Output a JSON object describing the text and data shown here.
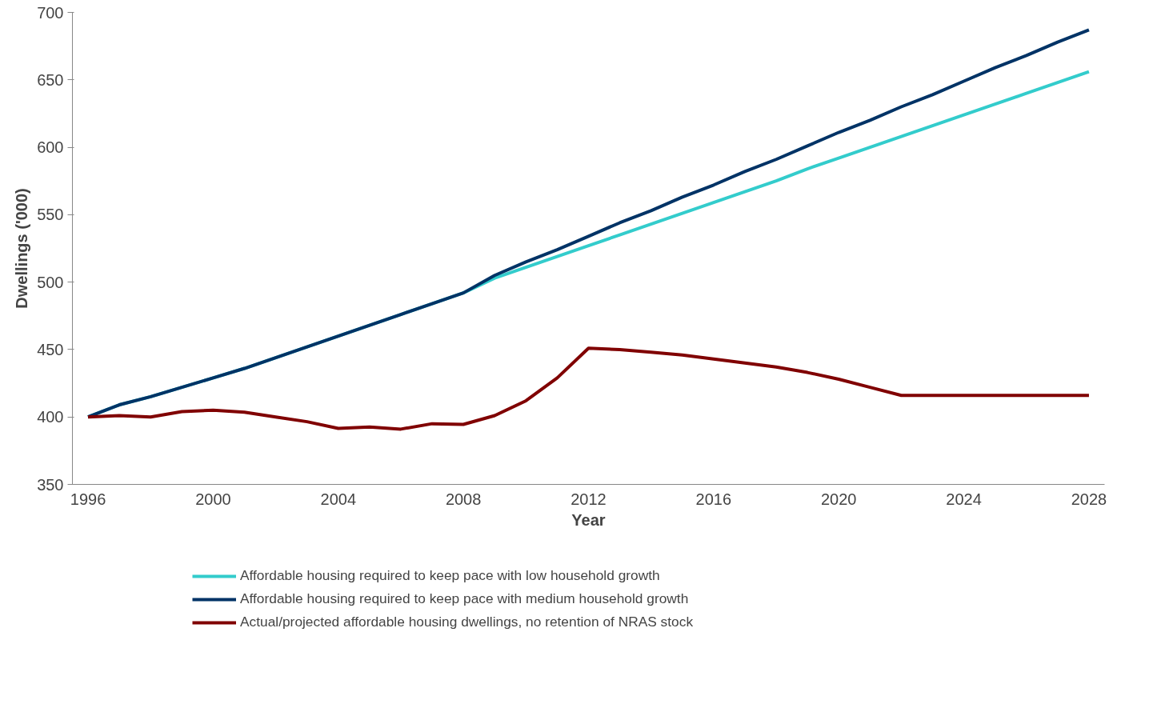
{
  "chart_data": {
    "type": "line",
    "xlabel": "Year",
    "ylabel": "Dwellings ('000)",
    "categories": [
      "1996",
      null,
      null,
      null,
      "2000",
      null,
      null,
      null,
      "2004",
      null,
      null,
      null,
      "2008",
      null,
      null,
      null,
      "2012",
      null,
      null,
      null,
      "2016",
      null,
      null,
      null,
      "2020",
      null,
      null,
      null,
      "2024",
      null,
      null,
      null,
      "2028"
    ],
    "series": [
      {
        "name": "Affordable housing required to keep pace with low household growth",
        "color": "#33cccc",
        "values": [
          400,
          409,
          415,
          422,
          429,
          436,
          444,
          452,
          460,
          468,
          476,
          484,
          492,
          503,
          511,
          519,
          527,
          535,
          543,
          551,
          559,
          567,
          575,
          584,
          592,
          600,
          608,
          616,
          624,
          632,
          640,
          648,
          656
        ]
      },
      {
        "name": "Affordable housing required to keep pace with medium household growth",
        "color": "#003366",
        "values": [
          400,
          409,
          415,
          422,
          429,
          436,
          444,
          452,
          460,
          468,
          476,
          484,
          492,
          505,
          515,
          524,
          534,
          544,
          553,
          563,
          572,
          582,
          591,
          601,
          611,
          620,
          630,
          639,
          649,
          659,
          668,
          678,
          687
        ]
      },
      {
        "name": "Actual/projected affordable housing dwellings, no retention of NRAS stock",
        "color": "#800000",
        "values": [
          400,
          401,
          400,
          404,
          405,
          403.5,
          400,
          396.5,
          391.5,
          392.5,
          391,
          395,
          394.5,
          401,
          412,
          429,
          451,
          450,
          448,
          446,
          443,
          440,
          437,
          433,
          428,
          422,
          416,
          416,
          416,
          416,
          416,
          416,
          416
        ]
      }
    ],
    "ylim": [
      350,
      700
    ],
    "yticks": [
      350,
      400,
      450,
      500,
      550,
      600,
      650,
      700
    ],
    "grid": false,
    "legend": "bottom",
    "marker": "none",
    "line_style": "solid"
  }
}
